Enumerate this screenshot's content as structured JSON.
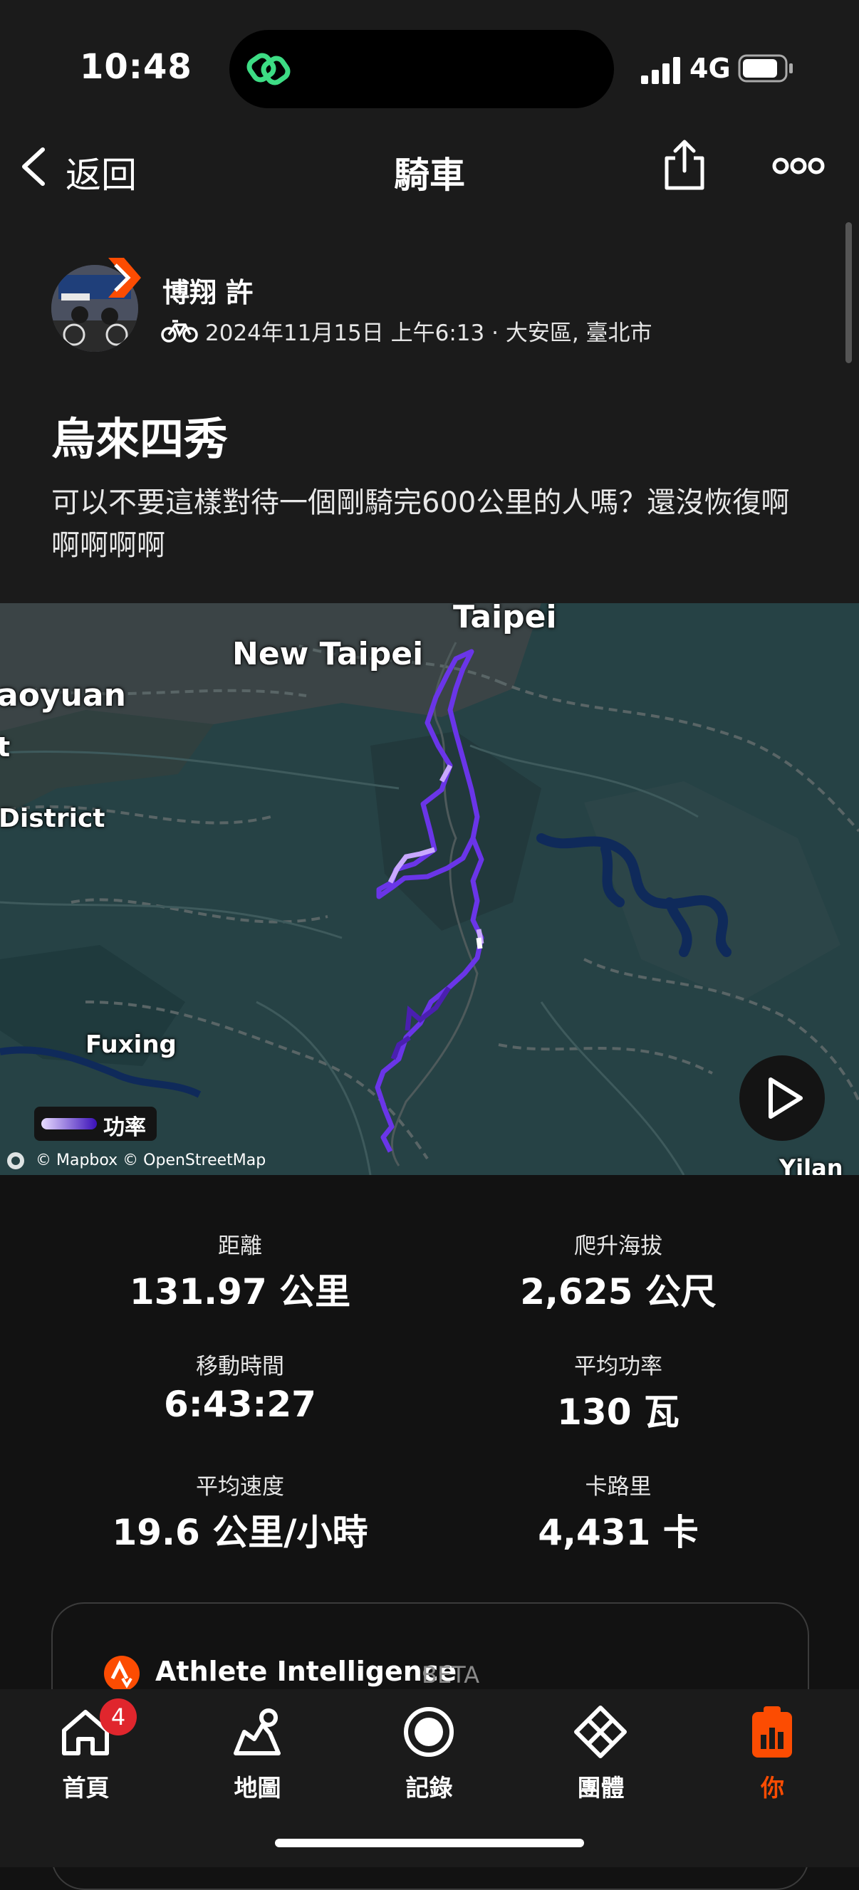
{
  "status_bar": {
    "time": "10:48",
    "network": "4G"
  },
  "nav": {
    "back_label": "返回",
    "title": "騎車"
  },
  "activity": {
    "athlete": "博翔 許",
    "meta": "2024年11月15日 上午6:13 · 大安區, 臺北市",
    "title": "烏來四秀",
    "description": "可以不要這樣對待一個剛騎完600公里的人嗎？還沒恢復啊啊啊啊啊"
  },
  "map": {
    "labels": {
      "taipei": "Taipei",
      "new_taipei": "New Taipei",
      "taoyuan": "aoyuan",
      "t": "t",
      "district": "District",
      "fuxing": "Fuxing",
      "yilan": "Yilan C"
    },
    "legend": "功率",
    "attribution": "© Mapbox © OpenStreetMap"
  },
  "stats": [
    {
      "label": "距離",
      "value": "131.97 公里"
    },
    {
      "label": "爬升海拔",
      "value": "2,625 公尺"
    },
    {
      "label": "移動時間",
      "value": "6:43:27"
    },
    {
      "label": "平均功率",
      "value": "130 瓦"
    },
    {
      "label": "平均速度",
      "value": "19.6 公里/小時"
    },
    {
      "label": "卡路里",
      "value": "4,431 卡"
    }
  ],
  "ai_card": {
    "title": "Athlete Intelligence",
    "badge": "BETA"
  },
  "tabs": [
    {
      "label": "首頁",
      "icon": "home-icon",
      "badge": "4"
    },
    {
      "label": "地圖",
      "icon": "map-icon"
    },
    {
      "label": "記錄",
      "icon": "record-icon"
    },
    {
      "label": "團體",
      "icon": "groups-icon"
    },
    {
      "label": "你",
      "icon": "you-icon"
    }
  ],
  "colors": {
    "accent": "#fc4c02",
    "background": "#121212",
    "surface": "#1b1b1b",
    "map_bg": "#264245",
    "route": "#6a35e8"
  }
}
